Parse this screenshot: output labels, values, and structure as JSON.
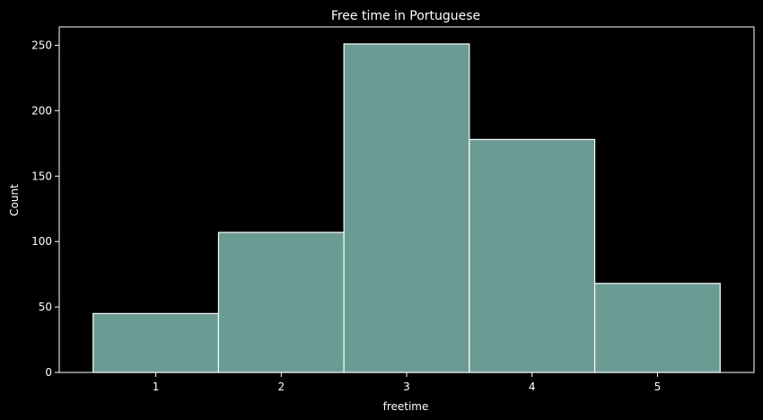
{
  "chart_data": {
    "type": "bar",
    "title": "Free time in Portuguese",
    "xlabel": "freetime",
    "ylabel": "Count",
    "categories": [
      "1",
      "2",
      "3",
      "4",
      "5"
    ],
    "values": [
      45,
      107,
      251,
      178,
      68
    ],
    "xlim": [
      0.23,
      5.77
    ],
    "ylim": [
      0,
      264
    ],
    "yticks": [
      0,
      50,
      100,
      150,
      200,
      250
    ],
    "grid": false,
    "colors": {
      "background": "#000000",
      "bar_fill": "#6a9c93",
      "bar_edge": "#ffffff",
      "axes": "#ffffff",
      "text": "#ffffff"
    }
  }
}
